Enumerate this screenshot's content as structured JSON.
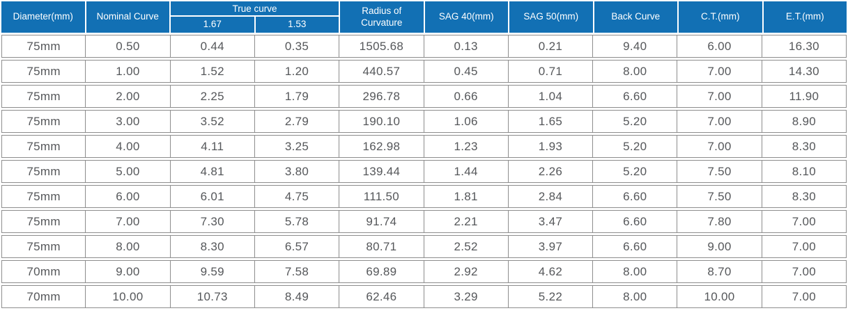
{
  "header": {
    "diameter": "Diameter(mm)",
    "nominal_curve": "Nominal Curve",
    "true_curve": "True curve",
    "true_curve_sub": [
      "1.67",
      "1.53"
    ],
    "radius_line1": "Radius of",
    "radius_line2": "Curvature",
    "sag40": "SAG 40(mm)",
    "sag50": "SAG 50(mm)",
    "back_curve": "Back Curve",
    "ct": "C.T.(mm)",
    "et": "E.T.(mm)"
  },
  "colors": {
    "header_bg": "#1270b4",
    "header_text": "#ffffff",
    "cell_text": "#55575a",
    "grid_line": "#8d8d8d"
  },
  "chart_data": {
    "type": "table",
    "title": "",
    "columns": [
      "Diameter(mm)",
      "Nominal Curve",
      "True curve 1.67",
      "True curve 1.53",
      "Radius of Curvature",
      "SAG 40(mm)",
      "SAG 50(mm)",
      "Back Curve",
      "C.T.(mm)",
      "E.T.(mm)"
    ],
    "rows": [
      [
        "75mm",
        "0.50",
        "0.44",
        "0.35",
        "1505.68",
        "0.13",
        "0.21",
        "9.40",
        "6.00",
        "16.30"
      ],
      [
        "75mm",
        "1.00",
        "1.52",
        "1.20",
        "440.57",
        "0.45",
        "0.71",
        "8.00",
        "7.00",
        "14.30"
      ],
      [
        "75mm",
        "2.00",
        "2.25",
        "1.79",
        "296.78",
        "0.66",
        "1.04",
        "6.60",
        "7.00",
        "11.90"
      ],
      [
        "75mm",
        "3.00",
        "3.52",
        "2.79",
        "190.10",
        "1.06",
        "1.65",
        "5.20",
        "7.00",
        "8.90"
      ],
      [
        "75mm",
        "4.00",
        "4.11",
        "3.25",
        "162.98",
        "1.23",
        "1.93",
        "5.20",
        "7.00",
        "8.30"
      ],
      [
        "75mm",
        "5.00",
        "4.81",
        "3.80",
        "139.44",
        "1.44",
        "2.26",
        "5.20",
        "7.50",
        "8.10"
      ],
      [
        "75mm",
        "6.00",
        "6.01",
        "4.75",
        "111.50",
        "1.81",
        "2.84",
        "6.60",
        "7.50",
        "8.30"
      ],
      [
        "75mm",
        "7.00",
        "7.30",
        "5.78",
        "91.74",
        "2.21",
        "3.47",
        "6.60",
        "7.80",
        "7.00"
      ],
      [
        "75mm",
        "8.00",
        "8.30",
        "6.57",
        "80.71",
        "2.52",
        "3.97",
        "6.60",
        "9.00",
        "7.00"
      ],
      [
        "70mm",
        "9.00",
        "9.59",
        "7.58",
        "69.89",
        "2.92",
        "4.62",
        "8.00",
        "8.70",
        "7.00"
      ],
      [
        "70mm",
        "10.00",
        "10.73",
        "8.49",
        "62.46",
        "3.29",
        "5.22",
        "8.00",
        "10.00",
        "7.00"
      ]
    ]
  }
}
